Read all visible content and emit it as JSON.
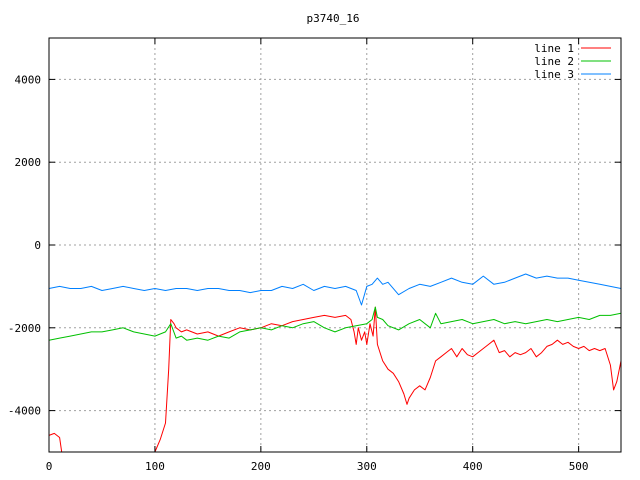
{
  "chart_data": {
    "type": "line",
    "title": "p3740_16",
    "xlabel": "",
    "ylabel": "",
    "xlim": [
      0,
      540
    ],
    "ylim": [
      -5000,
      5000
    ],
    "xticks": [
      0,
      100,
      200,
      300,
      400,
      500
    ],
    "yticks": [
      -4000,
      -2000,
      0,
      2000,
      4000
    ],
    "grid": true,
    "legend_position": "top-right",
    "series": [
      {
        "name": "line 1",
        "color": "#ff0000",
        "x": [
          0,
          5,
          10,
          12,
          15,
          18,
          20,
          40,
          60,
          80,
          95,
          100,
          105,
          110,
          113,
          115,
          118,
          120,
          125,
          130,
          140,
          150,
          160,
          170,
          180,
          190,
          200,
          210,
          220,
          230,
          240,
          250,
          260,
          270,
          280,
          285,
          288,
          290,
          292,
          295,
          298,
          300,
          303,
          306,
          308,
          310,
          315,
          320,
          325,
          330,
          335,
          338,
          340,
          345,
          350,
          355,
          360,
          365,
          370,
          375,
          380,
          385,
          390,
          395,
          400,
          405,
          410,
          415,
          420,
          425,
          430,
          435,
          440,
          445,
          450,
          455,
          460,
          465,
          470,
          475,
          480,
          485,
          490,
          495,
          500,
          505,
          510,
          515,
          520,
          525,
          530,
          533,
          536,
          540
        ],
        "y": [
          -4600,
          -4550,
          -4650,
          -5000,
          -5000,
          -5000,
          -5000,
          -5000,
          -5000,
          -5000,
          -5000,
          -5000,
          -4700,
          -4300,
          -3000,
          -1800,
          -1900,
          -2000,
          -2100,
          -2050,
          -2150,
          -2100,
          -2200,
          -2100,
          -2000,
          -2050,
          -2000,
          -1900,
          -1950,
          -1850,
          -1800,
          -1750,
          -1700,
          -1750,
          -1700,
          -1800,
          -2100,
          -2400,
          -2000,
          -2300,
          -2100,
          -2400,
          -1900,
          -2200,
          -1500,
          -2400,
          -2800,
          -3000,
          -3100,
          -3300,
          -3600,
          -3850,
          -3700,
          -3500,
          -3400,
          -3500,
          -3200,
          -2800,
          -2700,
          -2600,
          -2500,
          -2700,
          -2500,
          -2650,
          -2700,
          -2600,
          -2500,
          -2400,
          -2300,
          -2600,
          -2550,
          -2700,
          -2600,
          -2650,
          -2600,
          -2500,
          -2700,
          -2600,
          -2450,
          -2400,
          -2300,
          -2400,
          -2350,
          -2450,
          -2500,
          -2450,
          -2550,
          -2500,
          -2550,
          -2500,
          -2900,
          -3500,
          -3300,
          -2800
        ]
      },
      {
        "name": "line 2",
        "color": "#00c000",
        "x": [
          0,
          10,
          20,
          30,
          40,
          50,
          60,
          70,
          80,
          90,
          100,
          110,
          115,
          120,
          125,
          130,
          140,
          150,
          160,
          170,
          180,
          190,
          200,
          210,
          220,
          230,
          240,
          250,
          260,
          270,
          280,
          290,
          300,
          305,
          308,
          310,
          315,
          320,
          330,
          340,
          350,
          360,
          365,
          370,
          380,
          390,
          400,
          410,
          420,
          430,
          440,
          450,
          460,
          470,
          480,
          490,
          500,
          510,
          520,
          530,
          540
        ],
        "y": [
          -2300,
          -2250,
          -2200,
          -2150,
          -2100,
          -2100,
          -2050,
          -2000,
          -2100,
          -2150,
          -2200,
          -2100,
          -1900,
          -2250,
          -2200,
          -2300,
          -2250,
          -2300,
          -2200,
          -2250,
          -2100,
          -2050,
          -2000,
          -2050,
          -1950,
          -2000,
          -1900,
          -1850,
          -2000,
          -2100,
          -2000,
          -1950,
          -1900,
          -1800,
          -1500,
          -1750,
          -1800,
          -1950,
          -2050,
          -1900,
          -1800,
          -2000,
          -1650,
          -1900,
          -1850,
          -1800,
          -1900,
          -1850,
          -1800,
          -1900,
          -1850,
          -1900,
          -1850,
          -1800,
          -1850,
          -1800,
          -1750,
          -1800,
          -1700,
          -1700,
          -1650
        ]
      },
      {
        "name": "line 3",
        "color": "#0080ff",
        "x": [
          0,
          10,
          20,
          30,
          40,
          50,
          60,
          70,
          80,
          90,
          100,
          110,
          120,
          130,
          140,
          150,
          160,
          170,
          180,
          190,
          200,
          210,
          220,
          230,
          240,
          250,
          260,
          270,
          280,
          290,
          295,
          300,
          305,
          310,
          315,
          320,
          330,
          340,
          350,
          360,
          370,
          380,
          390,
          400,
          410,
          420,
          430,
          440,
          450,
          460,
          470,
          480,
          490,
          500,
          510,
          520,
          530,
          540
        ],
        "y": [
          -1050,
          -1000,
          -1050,
          -1050,
          -1000,
          -1100,
          -1050,
          -1000,
          -1050,
          -1100,
          -1050,
          -1100,
          -1050,
          -1050,
          -1100,
          -1050,
          -1050,
          -1100,
          -1100,
          -1150,
          -1100,
          -1100,
          -1000,
          -1050,
          -950,
          -1100,
          -1000,
          -1050,
          -1000,
          -1100,
          -1450,
          -1000,
          -950,
          -800,
          -950,
          -900,
          -1200,
          -1050,
          -950,
          -1000,
          -900,
          -800,
          -900,
          -950,
          -750,
          -950,
          -900,
          -800,
          -700,
          -800,
          -750,
          -800,
          -800,
          -850,
          -900,
          -950,
          -1000,
          -1050
        ]
      }
    ]
  }
}
